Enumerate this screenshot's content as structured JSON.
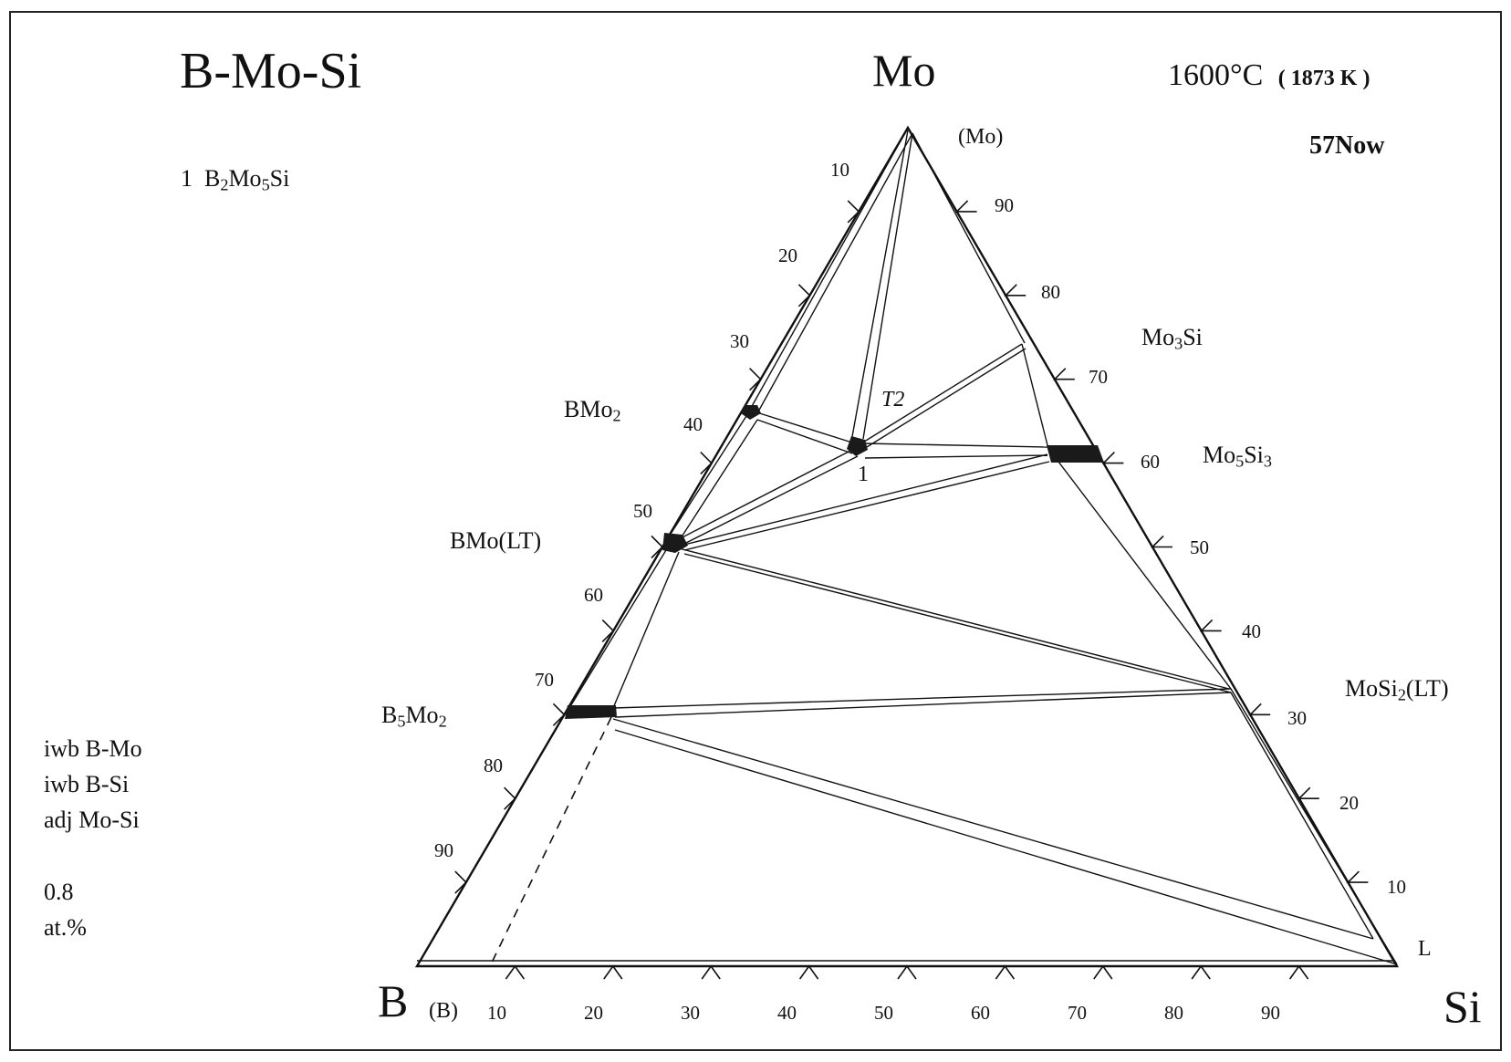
{
  "header": {
    "system": "B-Mo-Si",
    "temperature": "1600°C",
    "temperature_k": "( 1873 K )",
    "code": "57Now"
  },
  "legend": {
    "compound_number": "1",
    "compound_parts": [
      "B",
      "2",
      "Mo",
      "5",
      "Si"
    ]
  },
  "notes": {
    "lines": [
      "iwb  B-Mo",
      "iwb  B-Si",
      "adj  Mo-Si"
    ],
    "precision": "0.8",
    "unit": "at.%"
  },
  "corners": {
    "top": "Mo",
    "left": "B",
    "right": "Si",
    "top_phase": "(Mo)",
    "left_phase": "(B)",
    "right_phase": "L"
  },
  "phases": {
    "bmo2": [
      "BMo",
      "2"
    ],
    "bmo_lt": "BMo(LT)",
    "b5mo2": [
      "B",
      "5",
      "Mo",
      "2"
    ],
    "mo3si": [
      "Mo",
      "3",
      "Si"
    ],
    "mo5si3": [
      "Mo",
      "5",
      "Si",
      "3"
    ],
    "mosi2": [
      "MoSi",
      "2",
      "(LT)"
    ],
    "ternary_number": "1",
    "tau2": "T2"
  },
  "ticks": {
    "left": [
      "10",
      "20",
      "30",
      "40",
      "50",
      "60",
      "70",
      "80",
      "90"
    ],
    "right": [
      "90",
      "80",
      "70",
      "60",
      "50",
      "40",
      "30",
      "20",
      "10"
    ],
    "bottom": [
      "10",
      "20",
      "30",
      "40",
      "50",
      "60",
      "70",
      "80",
      "90"
    ]
  },
  "colors": {
    "ink": "#111111",
    "region": "#1a1a1a"
  }
}
